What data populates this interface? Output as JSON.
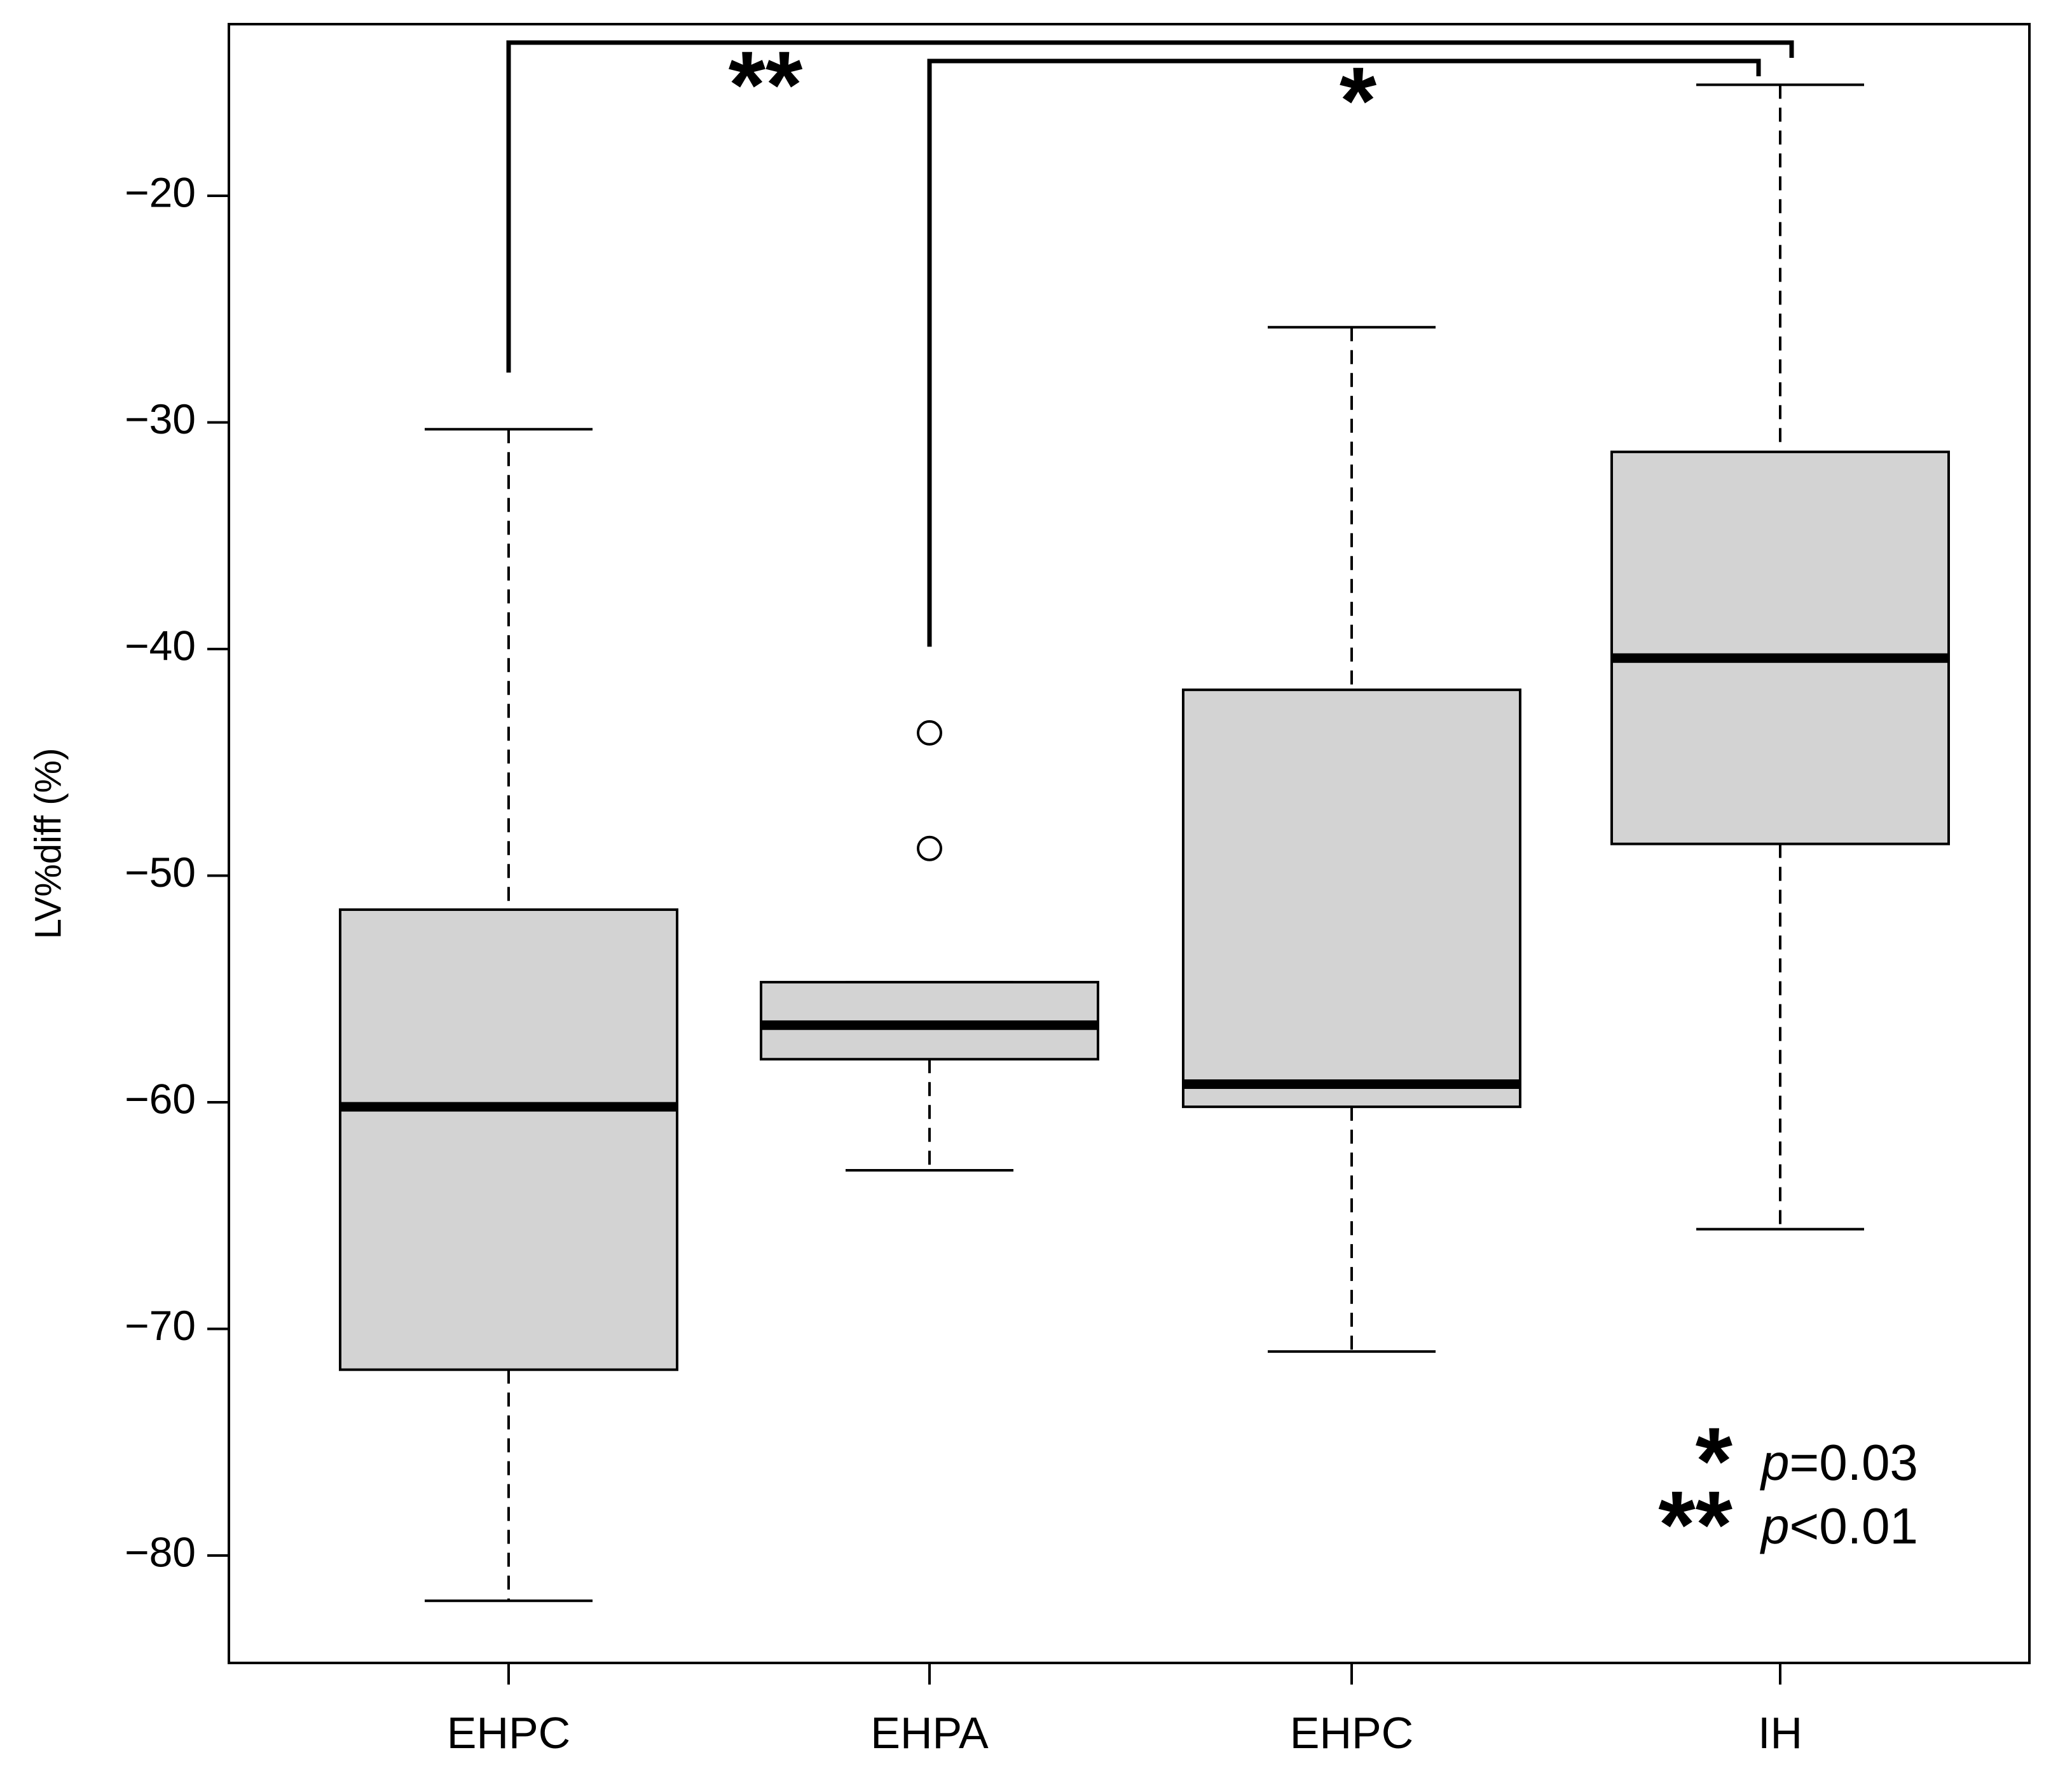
{
  "chart_data": {
    "type": "boxplot",
    "title": "",
    "xlabel": "",
    "ylabel": "LV%diff (%)",
    "categories": [
      "EHPC",
      "EHPA",
      "EHPC",
      "IH"
    ],
    "ylim": [
      -85,
      -12
    ],
    "yticks": [
      -20,
      -30,
      -40,
      -50,
      -60,
      -70,
      -80
    ],
    "ytick_labels": [
      "−20",
      "−30",
      "−40",
      "−50",
      "−60",
      "−70",
      "−80"
    ],
    "boxes": [
      {
        "name": "EHPC",
        "whisker_low": -82.0,
        "q1": -71.8,
        "median": -60.2,
        "q3": -51.5,
        "whisker_high": -30.3,
        "outliers": []
      },
      {
        "name": "EHPA",
        "whisker_low": -63.0,
        "q1": -58.1,
        "median": -56.6,
        "q3": -54.7,
        "whisker_high": -54.7,
        "outliers": [
          -43.7,
          -48.8
        ]
      },
      {
        "name": "EHPC",
        "whisker_low": -71.0,
        "q1": -60.2,
        "median": -59.2,
        "q3": -41.8,
        "whisker_high": -25.8,
        "outliers": []
      },
      {
        "name": "IH",
        "whisker_low": -65.6,
        "q1": -48.6,
        "median": -40.4,
        "q3": -31.3,
        "whisker_high": -15.1,
        "outliers": []
      }
    ],
    "box_fill": "#d3d3d3",
    "significance": [
      {
        "from": 0,
        "to": 3,
        "y_start": -27.8,
        "y_bar": -12.8,
        "label": "**"
      },
      {
        "from": 1,
        "to": 3,
        "y_start": -39.9,
        "y_bar": -13.6,
        "label": "*"
      }
    ],
    "legend": [
      {
        "symbol": "*",
        "p_letter": "p",
        "text": "=0.03"
      },
      {
        "symbol": "**",
        "p_letter": "p",
        "text": "<0.01"
      }
    ],
    "legend_position": "bottom-right"
  }
}
